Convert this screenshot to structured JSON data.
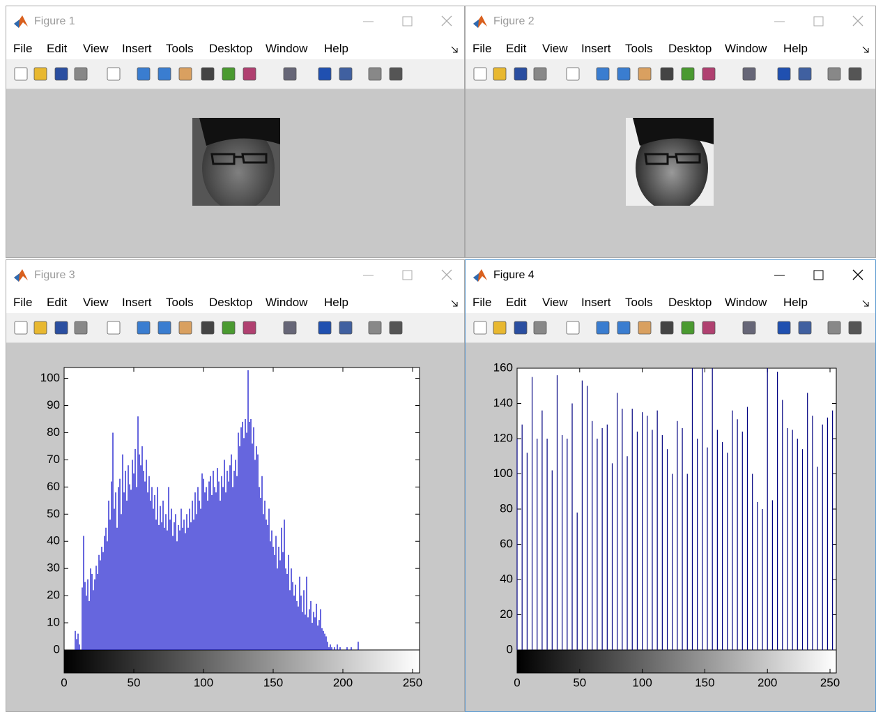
{
  "windows": [
    {
      "title": "Figure 1",
      "menu": [
        "File",
        "Edit",
        "View",
        "Insert",
        "Tools",
        "Desktop",
        "Window",
        "Help"
      ]
    },
    {
      "title": "Figure 2",
      "menu": [
        "File",
        "Edit",
        "View",
        "Insert",
        "Tools",
        "Desktop",
        "Window",
        "Help"
      ]
    },
    {
      "title": "Figure 3",
      "menu": [
        "File",
        "Edit",
        "View",
        "Insert",
        "Tools",
        "Desktop",
        "Window",
        "Help"
      ]
    },
    {
      "title": "Figure 4",
      "menu": [
        "File",
        "Edit",
        "View",
        "Insert",
        "Tools",
        "Desktop",
        "Window",
        "Help"
      ]
    }
  ],
  "chart_data": [
    {
      "type": "stem",
      "color": "#0000c8",
      "x": [
        8,
        9,
        10,
        11,
        12,
        13,
        14,
        15,
        16,
        17,
        18,
        19,
        20,
        21,
        22,
        23,
        24,
        25,
        26,
        27,
        28,
        29,
        30,
        31,
        32,
        33,
        34,
        35,
        36,
        37,
        38,
        39,
        40,
        41,
        42,
        43,
        44,
        45,
        46,
        47,
        48,
        49,
        50,
        51,
        52,
        53,
        54,
        55,
        56,
        57,
        58,
        59,
        60,
        61,
        62,
        63,
        64,
        65,
        66,
        67,
        68,
        69,
        70,
        71,
        72,
        73,
        74,
        75,
        76,
        77,
        78,
        79,
        80,
        81,
        82,
        83,
        84,
        85,
        86,
        87,
        88,
        89,
        90,
        91,
        92,
        93,
        94,
        95,
        96,
        97,
        98,
        99,
        100,
        101,
        102,
        103,
        104,
        105,
        106,
        107,
        108,
        109,
        110,
        111,
        112,
        113,
        114,
        115,
        116,
        117,
        118,
        119,
        120,
        121,
        122,
        123,
        124,
        125,
        126,
        127,
        128,
        129,
        130,
        131,
        132,
        133,
        134,
        135,
        136,
        137,
        138,
        139,
        140,
        141,
        142,
        143,
        144,
        145,
        146,
        147,
        148,
        149,
        150,
        151,
        152,
        153,
        154,
        155,
        156,
        157,
        158,
        159,
        160,
        161,
        162,
        163,
        164,
        165,
        166,
        167,
        168,
        169,
        170,
        171,
        172,
        173,
        174,
        175,
        176,
        177,
        178,
        179,
        180,
        181,
        182,
        183,
        184,
        185,
        186,
        187,
        188,
        189,
        190,
        191,
        192,
        193,
        194,
        195,
        196,
        197,
        198,
        199,
        203,
        206,
        211
      ],
      "values": [
        7,
        4,
        6,
        2,
        0,
        23,
        42,
        25,
        20,
        26,
        18,
        30,
        28,
        22,
        26,
        31,
        28,
        35,
        33,
        38,
        36,
        42,
        45,
        40,
        55,
        48,
        62,
        80,
        52,
        58,
        45,
        60,
        63,
        50,
        72,
        58,
        66,
        55,
        68,
        61,
        59,
        70,
        65,
        74,
        60,
        86,
        72,
        68,
        75,
        66,
        62,
        70,
        58,
        64,
        55,
        60,
        52,
        57,
        48,
        60,
        46,
        53,
        47,
        55,
        45,
        50,
        44,
        60,
        48,
        52,
        42,
        47,
        50,
        40,
        46,
        44,
        52,
        45,
        48,
        43,
        50,
        45,
        52,
        47,
        55,
        48,
        58,
        50,
        60,
        55,
        52,
        65,
        63,
        58,
        60,
        55,
        62,
        64,
        57,
        66,
        60,
        58,
        67,
        62,
        55,
        64,
        60,
        70,
        58,
        66,
        62,
        68,
        72,
        60,
        66,
        70,
        64,
        80,
        75,
        82,
        84,
        78,
        85,
        80,
        103,
        84,
        85,
        76,
        82,
        70,
        75,
        72,
        60,
        56,
        64,
        50,
        55,
        48,
        46,
        52,
        40,
        44,
        38,
        35,
        42,
        30,
        38,
        33,
        45,
        36,
        48,
        30,
        28,
        35,
        22,
        30,
        25,
        20,
        24,
        18,
        16,
        27,
        20,
        14,
        22,
        13,
        27,
        12,
        15,
        18,
        10,
        14,
        12,
        17,
        9,
        11,
        15,
        8,
        7,
        6,
        5,
        3,
        1,
        2,
        1,
        0,
        1,
        0,
        2,
        0,
        1,
        0,
        1,
        1,
        3
      ],
      "xlim": [
        0,
        255
      ],
      "ylim": [
        0,
        104
      ],
      "xticks": [
        0,
        50,
        100,
        150,
        200,
        250
      ],
      "yticks": [
        0,
        10,
        20,
        30,
        40,
        50,
        60,
        70,
        80,
        90,
        100
      ]
    },
    {
      "type": "stem",
      "color": "#000080",
      "x": [
        0,
        4,
        8,
        12,
        16,
        20,
        24,
        28,
        32,
        36,
        40,
        44,
        48,
        52,
        56,
        60,
        64,
        68,
        72,
        76,
        80,
        84,
        88,
        92,
        96,
        100,
        104,
        108,
        112,
        116,
        120,
        124,
        128,
        132,
        136,
        140,
        144,
        148,
        152,
        156,
        160,
        164,
        168,
        172,
        176,
        180,
        184,
        188,
        192,
        196,
        200,
        204,
        208,
        212,
        216,
        220,
        224,
        228,
        232,
        236,
        240,
        244,
        248,
        252
      ],
      "values": [
        120,
        128,
        112,
        155,
        120,
        136,
        120,
        102,
        156,
        122,
        120,
        140,
        78,
        153,
        150,
        130,
        120,
        126,
        128,
        106,
        146,
        137,
        110,
        137,
        124,
        135,
        133,
        125,
        136,
        122,
        114,
        100,
        130,
        126,
        100,
        160,
        120,
        160,
        115,
        160,
        125,
        118,
        112,
        136,
        131,
        124,
        138,
        100,
        84,
        80,
        160,
        85,
        158,
        142,
        126,
        125,
        120,
        114,
        146,
        133,
        104,
        128,
        132,
        136
      ],
      "xlim": [
        0,
        255
      ],
      "ylim": [
        0,
        160
      ],
      "xticks": [
        0,
        50,
        100,
        150,
        200,
        250
      ],
      "yticks": [
        0,
        20,
        40,
        60,
        80,
        100,
        120,
        140,
        160
      ]
    }
  ]
}
